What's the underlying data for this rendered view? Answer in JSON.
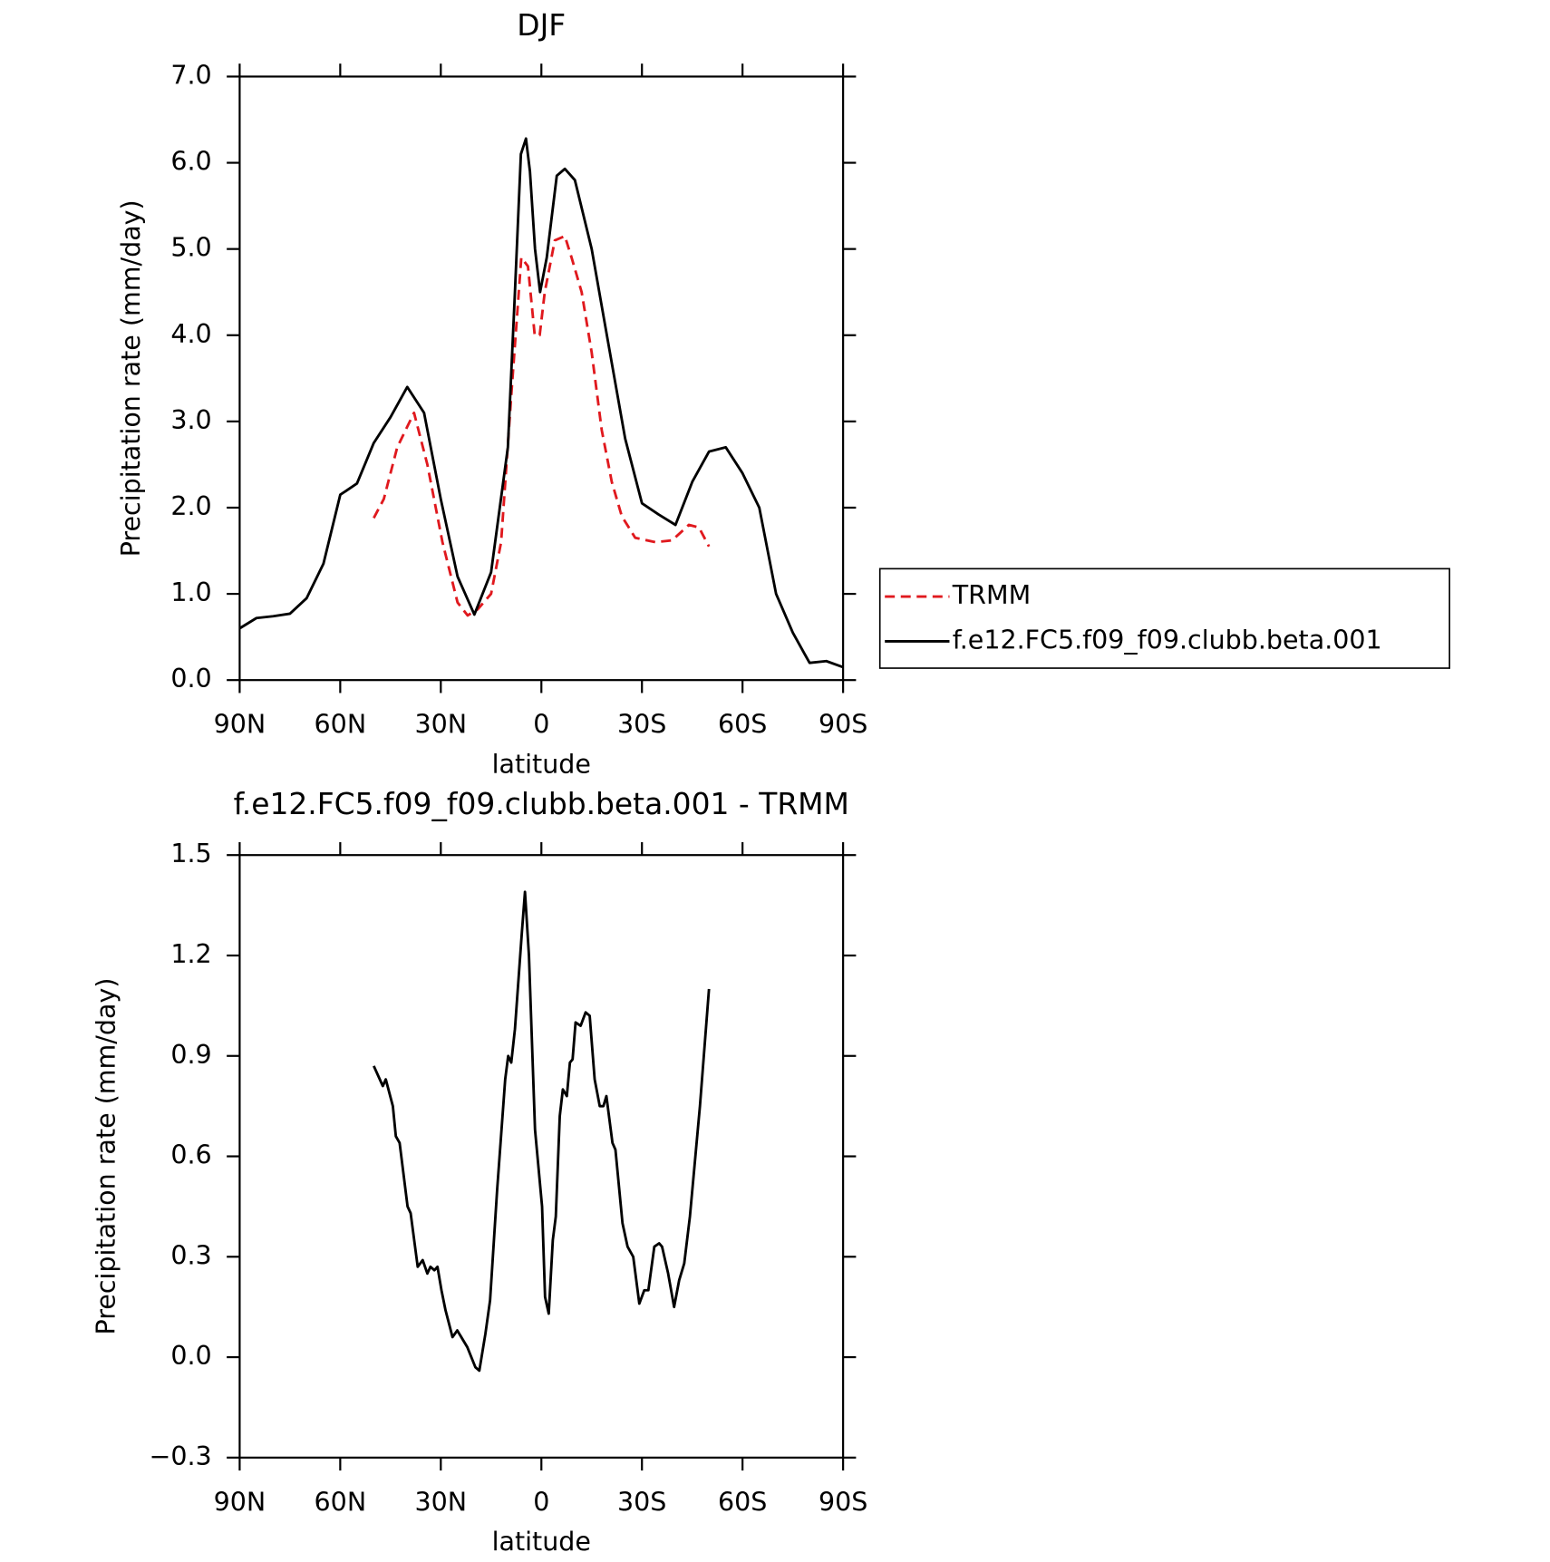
{
  "chart_data": [
    {
      "type": "line",
      "title": "DJF",
      "xlabel": "latitude",
      "ylabel": "Precipitation rate (mm/day)",
      "xlim": [
        90,
        -90
      ],
      "xticks": [
        {
          "value": 90,
          "label": "90N"
        },
        {
          "value": 60,
          "label": "60N"
        },
        {
          "value": 30,
          "label": "30N"
        },
        0,
        {
          "value": -30,
          "label": "30S"
        },
        {
          "value": -60,
          "label": "60S"
        },
        {
          "value": -90,
          "label": "90S"
        }
      ],
      "ylim": [
        0,
        7
      ],
      "yticks": [
        {
          "value": 0,
          "label": "0.0"
        },
        {
          "value": 1,
          "label": "1.0"
        },
        {
          "value": 2,
          "label": "2.0"
        },
        {
          "value": 3,
          "label": "3.0"
        },
        {
          "value": 4,
          "label": "4.0"
        },
        {
          "value": 5,
          "label": "5.0"
        },
        {
          "value": 6,
          "label": "6.0"
        },
        {
          "value": 7,
          "label": "7.0"
        }
      ],
      "legend": "right",
      "series": [
        {
          "name": "TRMM",
          "color": "#e0191e",
          "dash": true,
          "x": [
            50,
            47,
            43,
            38,
            34,
            29.5,
            25,
            22,
            19,
            15,
            12,
            9,
            6,
            4,
            2,
            0.5,
            -1,
            -4,
            -7,
            -9,
            -12,
            -15,
            -18,
            -21,
            -24,
            -28,
            -34,
            -39,
            -44,
            -47,
            -50
          ],
          "values": [
            1.88,
            2.1,
            2.7,
            3.1,
            2.5,
            1.6,
            0.9,
            0.75,
            0.82,
            1.0,
            1.6,
            3.3,
            4.9,
            4.8,
            4.0,
            4.0,
            4.5,
            5.1,
            5.15,
            4.9,
            4.5,
            3.8,
            2.9,
            2.3,
            1.9,
            1.65,
            1.6,
            1.62,
            1.8,
            1.77,
            1.55
          ]
        },
        {
          "name": "f.e12.FC5.f09_f09.clubb.beta.001",
          "color": "#000000",
          "dash": false,
          "x": [
            90,
            85,
            80,
            75,
            70,
            65,
            60,
            55,
            50,
            45,
            40,
            35,
            30,
            25,
            20,
            15,
            10,
            7.9,
            6.1,
            4.6,
            3.4,
            1.9,
            0.4,
            -1.6,
            -4.6,
            -7,
            -10,
            -15,
            -20,
            -25,
            -30,
            -35,
            -40,
            -45,
            -50,
            -55,
            -60,
            -65,
            -70,
            -75,
            -80,
            -85,
            -90
          ],
          "values": [
            0.6,
            0.72,
            0.74,
            0.77,
            0.95,
            1.35,
            2.15,
            2.28,
            2.75,
            3.05,
            3.4,
            3.1,
            2.1,
            1.2,
            0.76,
            1.25,
            2.7,
            4.5,
            6.1,
            6.28,
            5.9,
            5.0,
            4.5,
            4.9,
            5.85,
            5.93,
            5.8,
            5.0,
            3.9,
            2.8,
            2.05,
            1.92,
            1.8,
            2.3,
            2.65,
            2.7,
            2.4,
            2.0,
            1.0,
            0.55,
            0.2,
            0.22,
            0.15
          ]
        }
      ]
    },
    {
      "type": "line",
      "title": "f.e12.FC5.f09_f09.clubb.beta.001 - TRMM",
      "xlabel": "latitude",
      "ylabel": "Precipitation rate (mm/day)",
      "xlim": [
        90,
        -90
      ],
      "xticks": [
        {
          "value": 90,
          "label": "90N"
        },
        {
          "value": 60,
          "label": "60N"
        },
        {
          "value": 30,
          "label": "30N"
        },
        0,
        {
          "value": -30,
          "label": "30S"
        },
        {
          "value": -60,
          "label": "60S"
        },
        {
          "value": -90,
          "label": "90S"
        }
      ],
      "ylim": [
        -0.3,
        1.5
      ],
      "yticks": [
        {
          "value": -0.3,
          "label": "−0.3"
        },
        {
          "value": 0,
          "label": "0.0"
        },
        0.3,
        0.6,
        0.9,
        1.2,
        1.5
      ],
      "series": [
        {
          "color": "#000000",
          "dash": false,
          "x": [
            50,
            47.3,
            46.4,
            44.3,
            43.4,
            42.3,
            39.9,
            39.0,
            36.9,
            35.4,
            34.0,
            33.1,
            31.9,
            31.0,
            29.8,
            28.6,
            26.5,
            25.1,
            22.1,
            19.7,
            18.5,
            16.7,
            15.3,
            13.2,
            10.8,
            9.9,
            9.0,
            7.9,
            5.8,
            4.9,
            3.7,
            1.9,
            -0.2,
            -1.1,
            -2.2,
            -3.4,
            -4.3,
            -5.5,
            -6.4,
            -7.6,
            -8.5,
            -9.3,
            -10.2,
            -11.7,
            -13.2,
            -14.4,
            -15.9,
            -17.4,
            -18.5,
            -19.4,
            -21.2,
            -22.1,
            -24.2,
            -25.7,
            -27.4,
            -29.2,
            -30.7,
            -31.9,
            -33.7,
            -35.1,
            -36.0,
            -37.8,
            -39.6,
            -41.1,
            -42.6,
            -44.3,
            -47.3,
            -50
          ],
          "values": [
            0.87,
            0.81,
            0.83,
            0.75,
            0.66,
            0.64,
            0.45,
            0.43,
            0.27,
            0.29,
            0.25,
            0.27,
            0.26,
            0.27,
            0.2,
            0.14,
            0.06,
            0.08,
            0.03,
            -0.03,
            -0.04,
            0.07,
            0.17,
            0.5,
            0.83,
            0.9,
            0.88,
            0.98,
            1.27,
            1.39,
            1.2,
            0.68,
            0.45,
            0.18,
            0.13,
            0.35,
            0.42,
            0.72,
            0.8,
            0.78,
            0.88,
            0.89,
            1.0,
            0.99,
            1.03,
            1.02,
            0.83,
            0.75,
            0.75,
            0.78,
            0.64,
            0.62,
            0.4,
            0.33,
            0.3,
            0.16,
            0.2,
            0.2,
            0.33,
            0.34,
            0.33,
            0.25,
            0.15,
            0.23,
            0.28,
            0.42,
            0.75,
            1.1
          ]
        }
      ]
    }
  ]
}
